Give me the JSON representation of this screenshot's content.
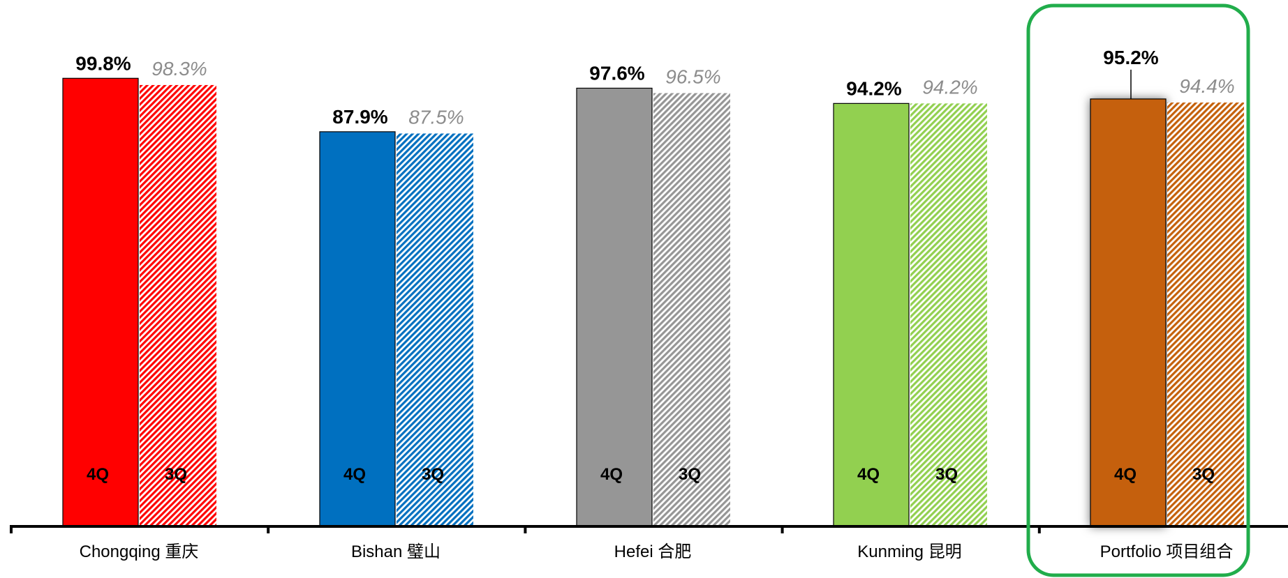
{
  "chart_data": {
    "type": "bar",
    "categories": [
      "Chongqing 重庆",
      "Bishan 璧山",
      "Hefei 合肥",
      "Kunming 昆明",
      "Portfolio 项目组合"
    ],
    "series": [
      {
        "name": "4Q",
        "values": [
          99.8,
          87.9,
          97.6,
          94.2,
          95.2
        ],
        "labels": [
          "99.8%",
          "87.9%",
          "97.6%",
          "94.2%",
          "95.2%"
        ],
        "style": "solid"
      },
      {
        "name": "3Q",
        "values": [
          98.3,
          87.5,
          96.5,
          94.2,
          94.4
        ],
        "labels": [
          "98.3%",
          "87.5%",
          "96.5%",
          "94.2%",
          "94.4%"
        ],
        "style": "hatched"
      }
    ],
    "colors": [
      "#ff0000",
      "#0070c0",
      "#969696",
      "#92d050",
      "#c5610b"
    ],
    "highlight": {
      "category": "Portfolio 项目组合",
      "color": "#21ad4b"
    },
    "ylim": [
      0,
      100
    ],
    "grid": false,
    "legend": "inside-bars"
  }
}
